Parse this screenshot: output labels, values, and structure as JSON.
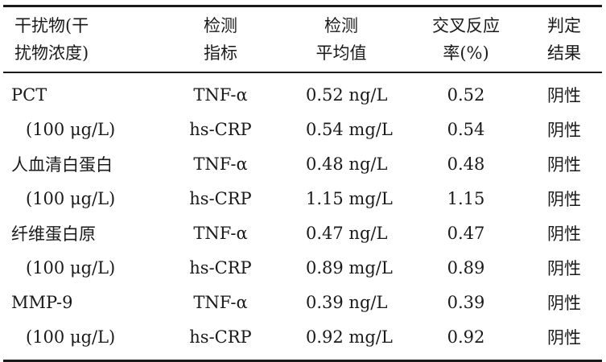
{
  "table": {
    "headers": [
      {
        "line1": "干扰物(干",
        "line2": "扰物浓度)"
      },
      {
        "line1": "检测",
        "line2": "指标"
      },
      {
        "line1": "检测",
        "line2": "平均值"
      },
      {
        "line1": "交叉反应",
        "line2": "率(%)"
      },
      {
        "line1": "判定",
        "line2": "结果"
      }
    ],
    "rows": [
      {
        "c1": "PCT",
        "c2": "TNF-α",
        "c3": "0.52 ng/L",
        "c4": "0.52",
        "c5": "阴性"
      },
      {
        "c1": "(100 μg/L)",
        "c2": "hs-CRP",
        "c3": "0.54 mg/L",
        "c4": "0.54",
        "c5": "阴性"
      },
      {
        "c1": "人血清白蛋白",
        "c2": "TNF-α",
        "c3": "0.48 ng/L",
        "c4": "0.48",
        "c5": "阴性"
      },
      {
        "c1": "(100 μg/L)",
        "c2": "hs-CRP",
        "c3": "1.15 mg/L",
        "c4": "1.15",
        "c5": "阴性"
      },
      {
        "c1": "纤维蛋白原",
        "c2": "TNF-α",
        "c3": "0.47 ng/L",
        "c4": "0.47",
        "c5": "阴性"
      },
      {
        "c1": "(100 μg/L)",
        "c2": "hs-CRP",
        "c3": "0.89 mg/L",
        "c4": "0.89",
        "c5": "阴性"
      },
      {
        "c1": "MMP-9",
        "c2": "TNF-α",
        "c3": "0.39 ng/L",
        "c4": "0.39",
        "c5": "阴性"
      },
      {
        "c1": "(100 μg/L)",
        "c2": "hs-CRP",
        "c3": "0.92 mg/L",
        "c4": "0.92",
        "c5": "阴性"
      }
    ]
  }
}
